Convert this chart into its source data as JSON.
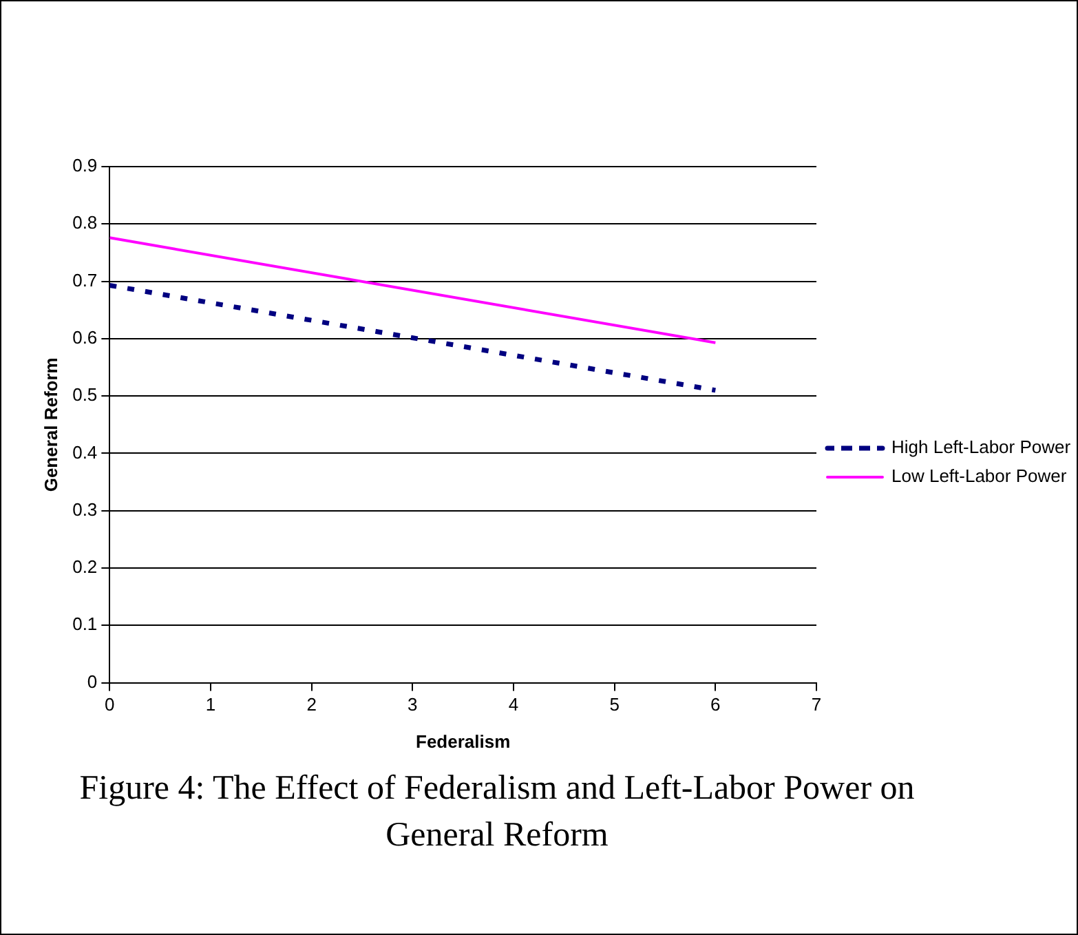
{
  "chart_data": {
    "type": "line",
    "title": "Figure 4: The Effect of Federalism and Left-Labor Power on General Reform",
    "xlabel": "Federalism",
    "ylabel": "General Reform",
    "x": [
      0,
      6
    ],
    "series": [
      {
        "name": "High Left-Labor Power",
        "color": "#000080",
        "values": [
          0.693,
          0.51
        ],
        "line_style": "dashed"
      },
      {
        "name": "Low Left-Labor Power",
        "color": "#ff00ff",
        "values": [
          0.776,
          0.593
        ],
        "line_style": "solid"
      }
    ],
    "xlim": [
      0,
      7
    ],
    "xticks": [
      0,
      1,
      2,
      3,
      4,
      5,
      6,
      7
    ],
    "ylim": [
      0,
      0.9
    ],
    "yticks": [
      0,
      0.1,
      0.2,
      0.3,
      0.4,
      0.5,
      0.6,
      0.7,
      0.8,
      0.9
    ],
    "grid": "y",
    "legend": "right",
    "marker": "none"
  }
}
